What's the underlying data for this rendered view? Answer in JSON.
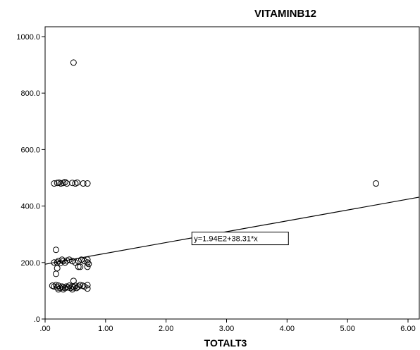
{
  "chart_data": {
    "type": "scatter",
    "title": "VITAMINB12",
    "xlabel": "TOTALT3",
    "ylabel": "",
    "xlim": [
      0,
      6.2
    ],
    "ylim": [
      0,
      1000
    ],
    "x_ticks": [
      ".00",
      "1.00",
      "2.00",
      "3.00",
      "4.00",
      "5.00",
      "6.00"
    ],
    "y_ticks": [
      ".0",
      "200.0",
      "400.0",
      "600.0",
      "800.0",
      "1000.0"
    ],
    "grid": false,
    "fit_line": {
      "intercept": 194,
      "slope": 38.31,
      "label": "y=1.94E2+38.31*x"
    },
    "series": [
      {
        "marker": "open-circle",
        "color": "#000000",
        "points": [
          [
            0.47,
            908
          ],
          [
            5.47,
            480
          ],
          [
            0.15,
            480
          ],
          [
            0.2,
            482
          ],
          [
            0.23,
            483
          ],
          [
            0.26,
            480
          ],
          [
            0.3,
            482
          ],
          [
            0.33,
            485
          ],
          [
            0.36,
            480
          ],
          [
            0.45,
            482
          ],
          [
            0.5,
            480
          ],
          [
            0.53,
            483
          ],
          [
            0.63,
            480
          ],
          [
            0.7,
            480
          ],
          [
            0.18,
            245
          ],
          [
            0.2,
            200
          ],
          [
            0.22,
            205
          ],
          [
            0.25,
            198
          ],
          [
            0.28,
            210
          ],
          [
            0.3,
            205
          ],
          [
            0.33,
            200
          ],
          [
            0.36,
            207
          ],
          [
            0.4,
            210
          ],
          [
            0.45,
            205
          ],
          [
            0.5,
            200
          ],
          [
            0.55,
            205
          ],
          [
            0.6,
            210
          ],
          [
            0.65,
            205
          ],
          [
            0.7,
            210
          ],
          [
            0.7,
            200
          ],
          [
            0.72,
            195
          ],
          [
            0.15,
            200
          ],
          [
            0.2,
            180
          ],
          [
            0.18,
            160
          ],
          [
            0.55,
            185
          ],
          [
            0.58,
            185
          ],
          [
            0.7,
            185
          ],
          [
            0.12,
            118
          ],
          [
            0.15,
            115
          ],
          [
            0.18,
            120
          ],
          [
            0.2,
            112
          ],
          [
            0.22,
            118
          ],
          [
            0.25,
            110
          ],
          [
            0.28,
            115
          ],
          [
            0.3,
            112
          ],
          [
            0.33,
            110
          ],
          [
            0.35,
            115
          ],
          [
            0.38,
            112
          ],
          [
            0.4,
            118
          ],
          [
            0.42,
            110
          ],
          [
            0.45,
            115
          ],
          [
            0.48,
            112
          ],
          [
            0.5,
            118
          ],
          [
            0.52,
            110
          ],
          [
            0.55,
            115
          ],
          [
            0.58,
            120
          ],
          [
            0.62,
            118
          ],
          [
            0.65,
            115
          ],
          [
            0.7,
            120
          ],
          [
            0.7,
            108
          ],
          [
            0.22,
            105
          ],
          [
            0.3,
            105
          ],
          [
            0.45,
            105
          ],
          [
            0.47,
            135
          ]
        ]
      }
    ]
  }
}
